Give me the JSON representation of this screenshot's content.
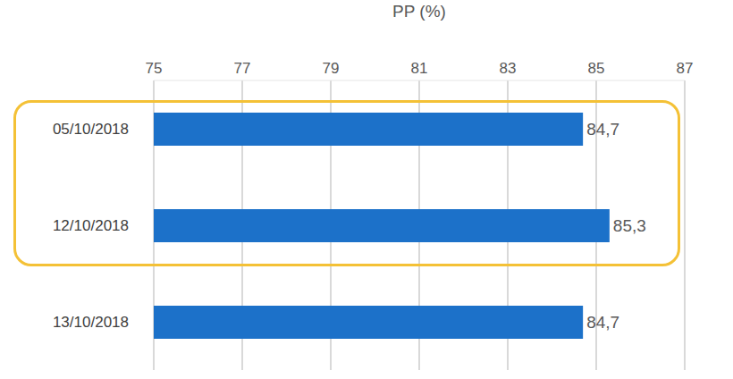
{
  "chart_data": {
    "type": "bar",
    "orientation": "horizontal",
    "xlabel": "PP (%)",
    "categories": [
      "05/10/2018",
      "12/10/2018",
      "13/10/2018"
    ],
    "values": [
      84.7,
      85.3,
      84.7
    ],
    "value_labels": [
      "84,7",
      "85,3",
      "84,7"
    ],
    "data_labels": true,
    "color": "#1c71c9",
    "xlim": [
      75,
      87
    ],
    "xticks": [
      75,
      77,
      79,
      81,
      83,
      85,
      87
    ],
    "grid": true
  }
}
